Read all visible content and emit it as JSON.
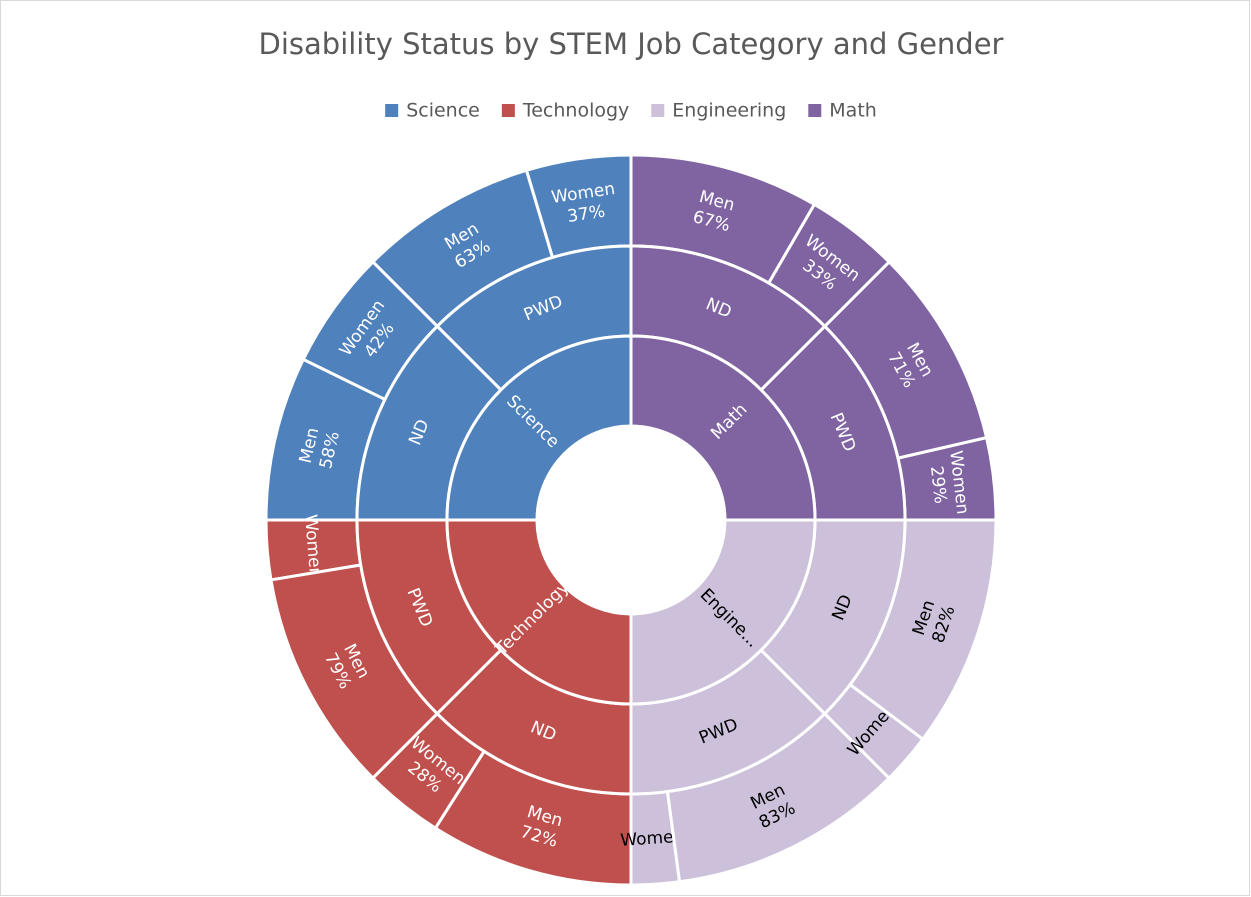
{
  "chart_data": {
    "type": "sunburst",
    "title": "Disability Status by STEM Job Category and Gender",
    "legend": "top",
    "categories": [
      {
        "name": "Science",
        "color": "#4f81bd",
        "children": [
          {
            "name": "PWD",
            "children": [
              {
                "name": "Women",
                "value": 37,
                "value_label": "37%"
              },
              {
                "name": "Men",
                "value": 63,
                "value_label": "63%"
              }
            ]
          },
          {
            "name": "ND",
            "children": [
              {
                "name": "Women",
                "value": 42,
                "value_label": "42%"
              },
              {
                "name": "Men",
                "value": 58,
                "value_label": "58%"
              }
            ]
          }
        ]
      },
      {
        "name": "Technology",
        "color": "#c0504d",
        "children": [
          {
            "name": "PWD",
            "children": [
              {
                "name": "Women",
                "value": 21
              },
              {
                "name": "Men",
                "value": 79,
                "value_label": "79%"
              }
            ]
          },
          {
            "name": "ND",
            "children": [
              {
                "name": "Women",
                "value": 28,
                "value_label": "28%"
              },
              {
                "name": "Men",
                "value": 72,
                "value_label": "72%"
              }
            ]
          }
        ]
      },
      {
        "name": "Engineering",
        "label": "Engine...",
        "color": "#ccc0da",
        "children": [
          {
            "name": "PWD",
            "children": [
              {
                "name": "Women",
                "value": 17
              },
              {
                "name": "Men",
                "value": 83,
                "value_label": "83%"
              }
            ]
          },
          {
            "name": "ND",
            "children": [
              {
                "name": "Women",
                "value": 18
              },
              {
                "name": "Men",
                "value": 82,
                "value_label": "82%"
              }
            ]
          }
        ]
      },
      {
        "name": "Math",
        "color": "#8064a2",
        "children": [
          {
            "name": "PWD",
            "children": [
              {
                "name": "Women",
                "value": 29,
                "value_label": "29%"
              },
              {
                "name": "Men",
                "value": 71,
                "value_label": "71%"
              }
            ]
          },
          {
            "name": "ND",
            "children": [
              {
                "name": "Women",
                "value": 33,
                "value_label": "33%"
              },
              {
                "name": "Men",
                "value": 67,
                "value_label": "67%"
              }
            ]
          }
        ]
      }
    ]
  }
}
